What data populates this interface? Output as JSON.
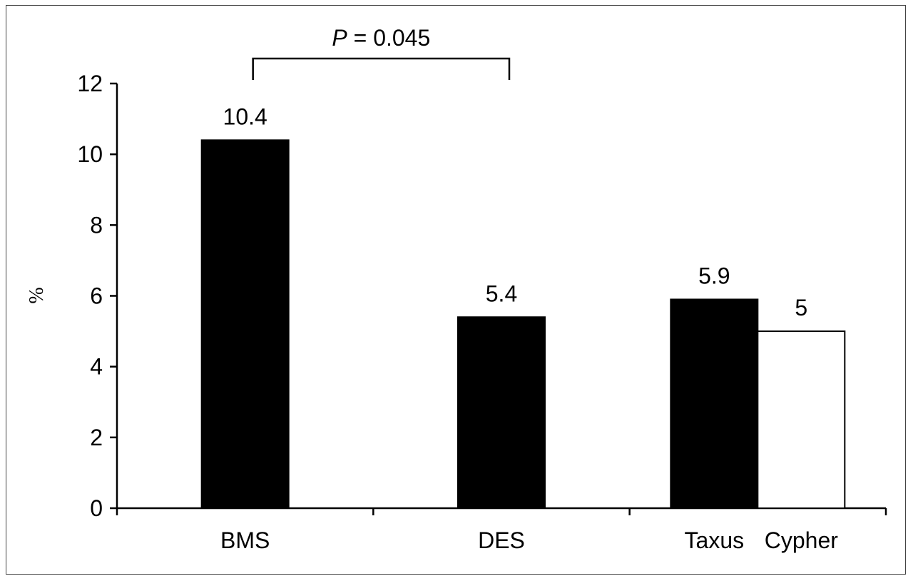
{
  "chart_data": {
    "type": "bar",
    "ylabel": "%",
    "ylim": [
      0,
      12
    ],
    "yticks": [
      0,
      2,
      4,
      6,
      8,
      10,
      12
    ],
    "groups": [
      {
        "label": "BMS",
        "bars": [
          {
            "label": "",
            "value": 10.4,
            "value_label": "10.4",
            "color": "#000000"
          }
        ]
      },
      {
        "label": "DES",
        "bars": [
          {
            "label": "",
            "value": 5.4,
            "value_label": "5.4",
            "color": "#000000"
          }
        ]
      },
      {
        "label": "",
        "bars": [
          {
            "label": "Taxus",
            "value": 5.9,
            "value_label": "5.9",
            "color": "#000000"
          },
          {
            "label": "Cypher",
            "value": 5,
            "value_label": "5",
            "color": "#ffffff"
          }
        ]
      }
    ],
    "annotation": {
      "p_symbol": "P",
      "text": " = 0.045",
      "from_group": 0,
      "to_group": 1
    },
    "grid": false
  }
}
